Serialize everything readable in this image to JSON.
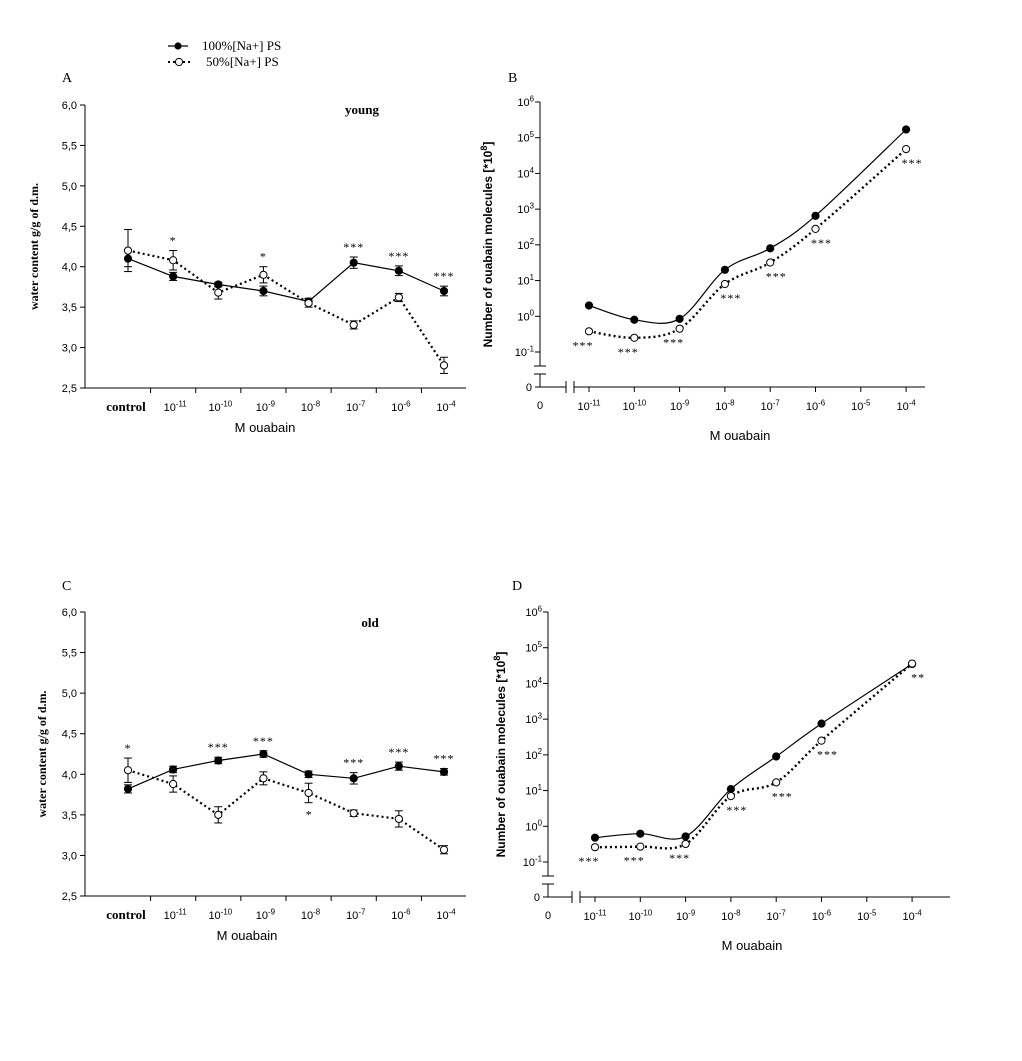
{
  "legend": {
    "series_filled_label": "100%[Na+] PS",
    "series_open_label": "50%[Na+] PS"
  },
  "chart_data": [
    {
      "panel": "A",
      "type": "line",
      "subtitle": "young",
      "xlabel": "M ouabain",
      "ylabel": "water content g/g of d.m.",
      "ylim": [
        2.5,
        6.0
      ],
      "yticks": [
        2.5,
        3.0,
        3.5,
        4.0,
        4.5,
        5.0,
        5.5,
        6.0
      ],
      "ytick_labels": [
        "2,5",
        "3,0",
        "3,5",
        "4,0",
        "4,5",
        "5,0",
        "5,5",
        "6,0"
      ],
      "categories": [
        "control",
        "10-11",
        "10-10",
        "10-9",
        "10-8",
        "10-7",
        "10-6",
        "10-4"
      ],
      "series": [
        {
          "name": "100%[Na+] PS",
          "marker": "filled",
          "line": "solid",
          "values": [
            4.1,
            3.88,
            3.78,
            3.7,
            3.57,
            4.05,
            3.95,
            3.7
          ],
          "errors": [
            0.1,
            0.05,
            0.03,
            0.06,
            0.04,
            0.07,
            0.06,
            0.06
          ]
        },
        {
          "name": "50%[Na+] PS",
          "marker": "open",
          "line": "dotted",
          "values": [
            4.2,
            4.08,
            3.68,
            3.9,
            3.55,
            3.28,
            3.62,
            2.78
          ],
          "errors": [
            0.26,
            0.12,
            0.08,
            0.1,
            0.05,
            0.05,
            0.05,
            0.1
          ]
        }
      ],
      "significance": [
        "",
        "*",
        "",
        "*",
        "",
        "***",
        "***",
        "***"
      ]
    },
    {
      "panel": "B",
      "type": "line",
      "xlabel": "M ouabain",
      "ylabel": "Number of ouabain molecules [*10^8]",
      "yscale": "log",
      "ylim_exp": [
        -1,
        6
      ],
      "ytick_exponents": [
        -1,
        0,
        1,
        2,
        3,
        4,
        5,
        6
      ],
      "zero_label": "0",
      "x_zero_label": "0",
      "x_exponents": [
        -11,
        -10,
        -9,
        -8,
        -7,
        -6,
        -5,
        -4
      ],
      "series": [
        {
          "name": "100%[Na+] PS",
          "marker": "filled",
          "line": "solid",
          "x_exp": [
            -11,
            -10,
            -9,
            -8,
            -7,
            -6,
            -4
          ],
          "values": [
            2,
            0.8,
            0.85,
            20,
            80,
            650,
            170000
          ]
        },
        {
          "name": "50%[Na+] PS",
          "marker": "open",
          "line": "dotted",
          "x_exp": [
            -11,
            -10,
            -9,
            -8,
            -7,
            -6,
            -4
          ],
          "values": [
            0.38,
            0.25,
            0.45,
            8,
            32,
            280,
            48000
          ]
        }
      ],
      "significance": [
        "***",
        "***",
        "***",
        "***",
        "***",
        "***",
        "***"
      ]
    },
    {
      "panel": "C",
      "type": "line",
      "subtitle": "old",
      "xlabel": "M ouabain",
      "ylabel": "water content g/g of d.m.",
      "ylim": [
        2.5,
        6.0
      ],
      "yticks": [
        2.5,
        3.0,
        3.5,
        4.0,
        4.5,
        5.0,
        5.5,
        6.0
      ],
      "ytick_labels": [
        "2,5",
        "3,0",
        "3,5",
        "4,0",
        "4,5",
        "5,0",
        "5,5",
        "6,0"
      ],
      "categories": [
        "control",
        "10-11",
        "10-10",
        "10-9",
        "10-8",
        "10-7",
        "10-6",
        "10-4"
      ],
      "series": [
        {
          "name": "100%[Na+] PS",
          "marker": "filled",
          "line": "solid",
          "values": [
            3.82,
            4.06,
            4.17,
            4.25,
            4.0,
            3.95,
            4.1,
            4.03
          ],
          "errors": [
            0.05,
            0.04,
            0.04,
            0.04,
            0.04,
            0.07,
            0.05,
            0.04
          ]
        },
        {
          "name": "50%[Na+] PS",
          "marker": "open",
          "line": "dotted",
          "values": [
            4.05,
            3.88,
            3.5,
            3.95,
            3.77,
            3.52,
            3.45,
            3.07
          ],
          "errors": [
            0.15,
            0.1,
            0.1,
            0.08,
            0.12,
            0.04,
            0.1,
            0.05
          ]
        }
      ],
      "significance_above": [
        "*",
        "",
        "***",
        "***",
        "",
        "***",
        "***",
        "***"
      ],
      "significance_below": [
        "",
        "",
        "",
        "",
        "*",
        "",
        "",
        ""
      ]
    },
    {
      "panel": "D",
      "type": "line",
      "xlabel": "M ouabain",
      "ylabel": "Number of ouabain molecules [*10^8]",
      "yscale": "log",
      "ylim_exp": [
        -1,
        6
      ],
      "ytick_exponents": [
        -1,
        0,
        1,
        2,
        3,
        4,
        5,
        6
      ],
      "zero_label": "0",
      "x_zero_label": "0",
      "x_exponents": [
        -11,
        -10,
        -9,
        -8,
        -7,
        -6,
        -5,
        -4
      ],
      "series": [
        {
          "name": "100%[Na+] PS",
          "marker": "filled",
          "line": "solid",
          "x_exp": [
            -11,
            -10,
            -9,
            -8,
            -7,
            -6,
            -4
          ],
          "values": [
            0.48,
            0.62,
            0.52,
            11,
            90,
            750,
            35000
          ]
        },
        {
          "name": "50%[Na+] PS",
          "marker": "open",
          "line": "dotted",
          "x_exp": [
            -11,
            -10,
            -9,
            -8,
            -7,
            -6,
            -4
          ],
          "values": [
            0.26,
            0.27,
            0.32,
            7,
            17,
            250,
            36000
          ]
        }
      ],
      "significance": [
        "***",
        "***",
        "***",
        "***",
        "***",
        "***",
        "**"
      ]
    }
  ]
}
